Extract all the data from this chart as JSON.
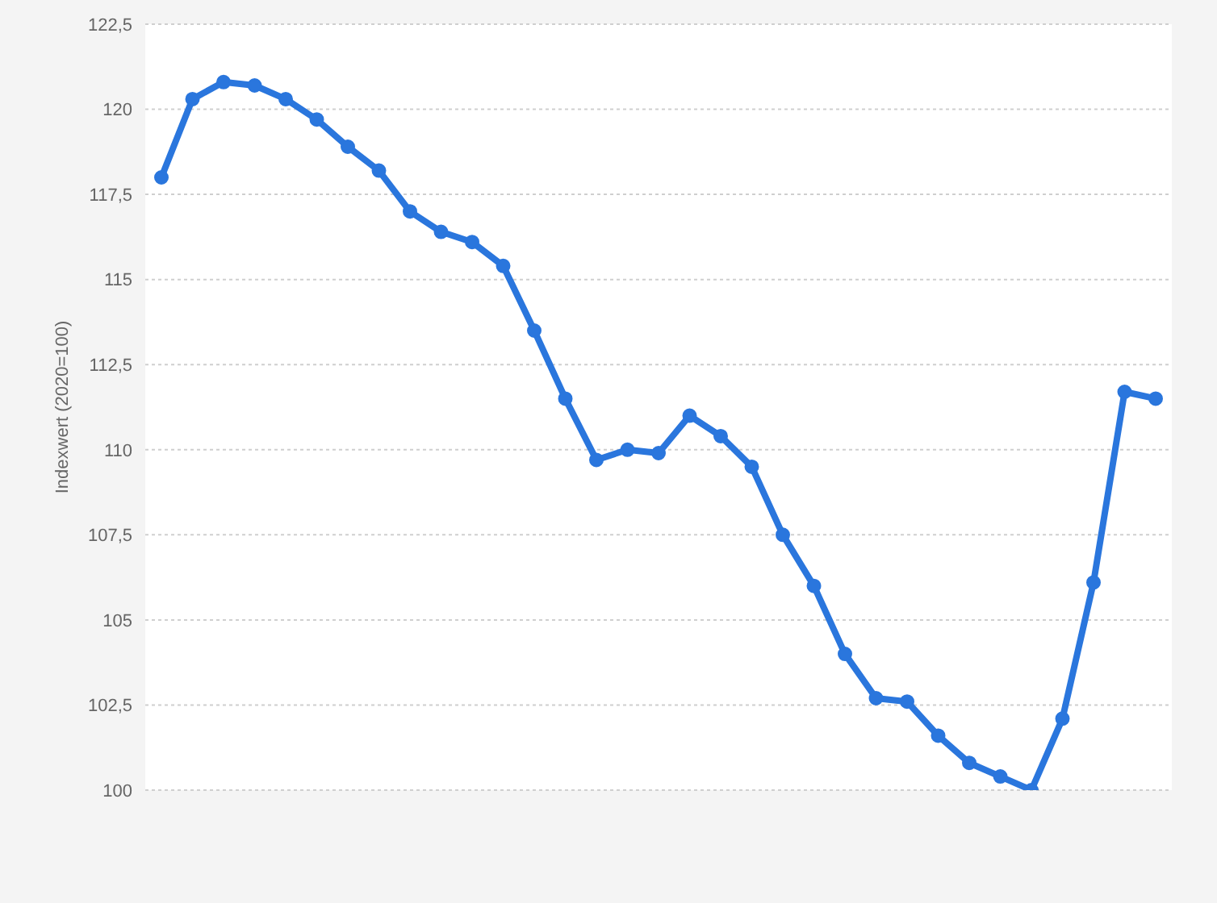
{
  "chart_data": {
    "type": "line",
    "ylabel": "Indexwert (2020=100)",
    "categories": [
      null,
      null,
      null,
      null,
      null,
      null,
      null,
      null,
      null,
      null,
      null,
      null,
      null,
      null,
      null,
      null,
      null,
      null,
      null,
      null,
      null,
      null,
      null,
      null,
      null,
      null,
      null,
      null,
      null,
      null,
      null,
      null,
      null
    ],
    "series": [
      {
        "color": "#2a76dd",
        "values": [
          118.0,
          120.3,
          120.8,
          120.7,
          120.3,
          119.7,
          118.9,
          118.2,
          117.0,
          116.4,
          116.1,
          115.4,
          113.5,
          111.5,
          109.7,
          110.0,
          109.9,
          111.0,
          110.4,
          109.5,
          107.5,
          106.0,
          104.0,
          102.7,
          102.6,
          101.6,
          100.8,
          100.4,
          100.0,
          102.1,
          106.1,
          111.7,
          111.5
        ]
      }
    ],
    "ylim": [
      100,
      122.5
    ],
    "yticks": [
      100,
      {
        "value": 102.5,
        "label": "102,5"
      },
      105,
      {
        "value": 107.5,
        "label": "107,5"
      },
      110,
      {
        "value": 112.5,
        "label": "112,5"
      },
      115,
      {
        "value": 117.5,
        "label": "117,5"
      },
      120,
      {
        "value": 122.5,
        "label": "122,5"
      }
    ],
    "grid": "y",
    "legend": false,
    "marker": "circle",
    "line_style": "solid",
    "tick_labels": "y"
  }
}
